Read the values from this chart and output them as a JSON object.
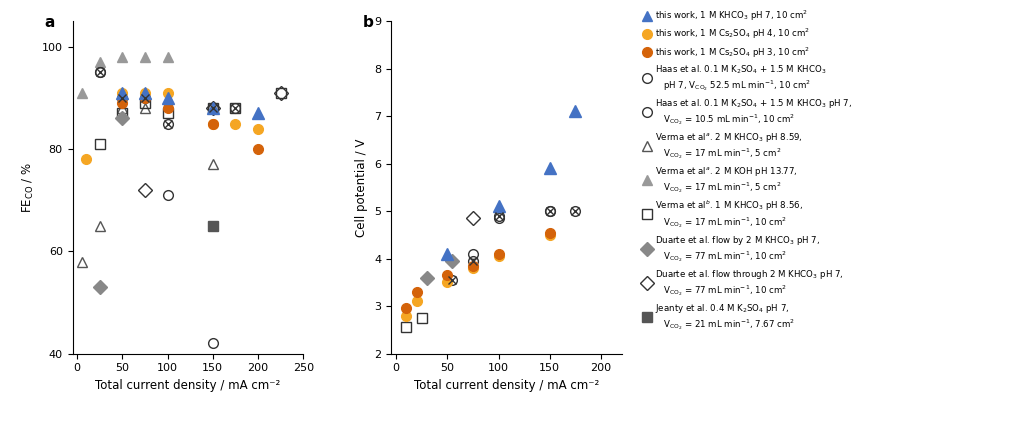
{
  "panel_a": {
    "title": "a",
    "xlabel": "Total current density / mA cm⁻²",
    "ylabel": "FE$_{CO}$ / %",
    "xlim": [
      -5,
      250
    ],
    "ylim": [
      40,
      105
    ],
    "yticks": [
      40,
      60,
      80,
      100
    ],
    "xticks": [
      0,
      50,
      100,
      150,
      200,
      250
    ],
    "series": {
      "verma_triangle_gray": {
        "x": [
          5,
          25,
          50,
          75,
          100
        ],
        "y": [
          91,
          97,
          98,
          98,
          98
        ],
        "color": "#999999",
        "marker": "^",
        "filled": true,
        "ms": 7,
        "zorder": 3
      },
      "verma_triangle_open": {
        "x": [
          5,
          25,
          50,
          75,
          150
        ],
        "y": [
          58,
          65,
          88,
          88,
          77
        ],
        "color": "#555555",
        "marker": "^",
        "filled": false,
        "ms": 7,
        "zorder": 3
      },
      "verma_square_open": {
        "x": [
          25,
          50,
          75,
          100,
          150,
          175,
          225
        ],
        "y": [
          81,
          87,
          89,
          87,
          88,
          88,
          91
        ],
        "color": "#333333",
        "marker": "s",
        "filled": false,
        "ms": 7,
        "zorder": 3
      },
      "duarte_diamond_gray": {
        "x": [
          25,
          50
        ],
        "y": [
          53,
          86
        ],
        "color": "#888888",
        "marker": "D",
        "filled": true,
        "ms": 7,
        "zorder": 3
      },
      "duarte_diamond_open": {
        "x": [
          75,
          150,
          225
        ],
        "y": [
          72,
          88,
          91
        ],
        "color": "#333333",
        "marker": "D",
        "filled": false,
        "ms": 7,
        "zorder": 3
      },
      "jeanty_square_dark": {
        "x": [
          150
        ],
        "y": [
          65
        ],
        "color": "#555555",
        "marker": "s",
        "filled": true,
        "ms": 7,
        "zorder": 3
      },
      "haas_circle": {
        "x": [
          25,
          100,
          150
        ],
        "y": [
          95,
          71,
          42
        ],
        "color": "#333333",
        "marker": "o",
        "filled": false,
        "ms": 7,
        "zorder": 4
      },
      "this_work_cs2so4_ph4": {
        "x": [
          10,
          50,
          75,
          100,
          150,
          175,
          200
        ],
        "y": [
          78,
          91,
          91,
          91,
          85,
          85,
          84
        ],
        "color": "#F5A623",
        "marker": "o",
        "filled": true,
        "ms": 7,
        "zorder": 5
      },
      "this_work_cs2so4_ph3": {
        "x": [
          50,
          75,
          100,
          150,
          200
        ],
        "y": [
          89,
          90,
          88,
          85,
          80
        ],
        "color": "#D4630A",
        "marker": "o",
        "filled": true,
        "ms": 7,
        "zorder": 5
      },
      "this_work_khco3": {
        "x": [
          50,
          75,
          100,
          150,
          200
        ],
        "y": [
          91,
          91,
          90,
          88,
          87
        ],
        "color": "#4472C4",
        "marker": "^",
        "filled": true,
        "ms": 8,
        "zorder": 5
      },
      "haas_cross_circle": {
        "x": [
          25,
          50,
          75,
          100,
          150,
          175
        ],
        "y": [
          95,
          90,
          90,
          85,
          88,
          88
        ],
        "color": "#333333",
        "marker": "cross_circle",
        "filled": false,
        "ms": 7,
        "zorder": 4
      }
    }
  },
  "panel_b": {
    "title": "b",
    "xlabel": "Total current density / mA cm⁻²",
    "ylabel": "Cell potential / V",
    "xlim": [
      -5,
      220
    ],
    "ylim": [
      2,
      9
    ],
    "yticks": [
      2,
      3,
      4,
      5,
      6,
      7,
      8,
      9
    ],
    "xticks": [
      0,
      50,
      100,
      150,
      200
    ],
    "series": {
      "verma_square_open": {
        "x": [
          10,
          25
        ],
        "y": [
          2.55,
          2.75
        ],
        "color": "#333333",
        "marker": "s",
        "filled": false,
        "ms": 7,
        "zorder": 3
      },
      "duarte_diamond_gray": {
        "x": [
          30,
          55
        ],
        "y": [
          3.6,
          3.95
        ],
        "color": "#888888",
        "marker": "D",
        "filled": true,
        "ms": 7,
        "zorder": 3
      },
      "duarte_diamond_open": {
        "x": [
          75
        ],
        "y": [
          4.85
        ],
        "color": "#333333",
        "marker": "D",
        "filled": false,
        "ms": 7,
        "zorder": 3
      },
      "haas_circle": {
        "x": [
          75,
          100,
          150
        ],
        "y": [
          4.1,
          4.85,
          5.0
        ],
        "color": "#333333",
        "marker": "o",
        "filled": false,
        "ms": 7,
        "zorder": 4
      },
      "this_work_cs2so4_ph4": {
        "x": [
          10,
          20,
          50,
          75,
          100,
          150
        ],
        "y": [
          2.8,
          3.1,
          3.5,
          3.8,
          4.05,
          4.5
        ],
        "color": "#F5A623",
        "marker": "o",
        "filled": true,
        "ms": 7,
        "zorder": 5
      },
      "this_work_cs2so4_ph3": {
        "x": [
          10,
          20,
          50,
          75,
          100,
          150
        ],
        "y": [
          2.95,
          3.3,
          3.65,
          3.85,
          4.1,
          4.55
        ],
        "color": "#D4630A",
        "marker": "o",
        "filled": true,
        "ms": 7,
        "zorder": 5
      },
      "this_work_khco3": {
        "x": [
          50,
          100,
          150,
          175
        ],
        "y": [
          4.1,
          5.1,
          5.9,
          7.1
        ],
        "color": "#4472C4",
        "marker": "^",
        "filled": true,
        "ms": 8,
        "zorder": 5
      },
      "haas_cross_circle": {
        "x": [
          55,
          75,
          100,
          150,
          175
        ],
        "y": [
          3.55,
          3.95,
          4.9,
          5.0,
          5.0
        ],
        "color": "#333333",
        "marker": "cross_circle",
        "filled": false,
        "ms": 7,
        "zorder": 4
      }
    }
  },
  "legend": {
    "entries": [
      {
        "label": "this work, 1 M KHCO$_3$ pH 7, 10 cm$^2$",
        "color": "#4472C4",
        "marker": "^",
        "filled": true,
        "ms": 7
      },
      {
        "label": "this work, 1 M Cs$_2$SO$_4$ pH 4, 10 cm$^2$",
        "color": "#F5A623",
        "marker": "o",
        "filled": true,
        "ms": 7
      },
      {
        "label": "this work, 1 M Cs$_2$SO$_4$ pH 3, 10 cm$^2$",
        "color": "#D4630A",
        "marker": "o",
        "filled": true,
        "ms": 7
      },
      {
        "label": "Haas et al. 0.1 M K$_2$SO$_4$ + 1.5 M KHCO$_3$\n   pH 7, V$_{\\rm CO_2}$ 52.5 mL min$^{-1}$, 10 cm$^2$",
        "color": "#333333",
        "marker": "cross_circle",
        "filled": false,
        "ms": 7
      },
      {
        "label": "Haas et al. 0.1 M K$_2$SO$_4$ + 1.5 M KHCO$_3$ pH 7,\n   V$_{\\rm CO_2}$ = 10.5 mL min$^{-1}$, 10 cm$^2$",
        "color": "#333333",
        "marker": "o",
        "filled": false,
        "ms": 7
      },
      {
        "label": "Verma et al$^a$. 2 M KHCO$_3$ pH 8.59,\n   V$_{\\rm CO_2}$ = 17 mL min$^{-1}$, 5 cm$^2$",
        "color": "#555555",
        "marker": "^",
        "filled": false,
        "ms": 7
      },
      {
        "label": "Verma et al$^a$. 2 M KOH pH 13.77,\n   V$_{\\rm CO_2}$ = 17 mL min$^{-1}$, 5 cm$^2$",
        "color": "#999999",
        "marker": "^",
        "filled": true,
        "ms": 7
      },
      {
        "label": "Verma et al$^b$. 1 M KHCO$_3$ pH 8.56,\n   V$_{\\rm CO_2}$ = 17 mL min$^{-1}$, 10 cm$^2$",
        "color": "#333333",
        "marker": "s",
        "filled": false,
        "ms": 7
      },
      {
        "label": "Duarte et al. flow by 2 M KHCO$_3$ pH 7,\n   V$_{\\rm CO_2}$ = 77 mL min$^{-1}$, 10 cm$^2$",
        "color": "#888888",
        "marker": "D",
        "filled": true,
        "ms": 7
      },
      {
        "label": "Duarte et al. flow through 2 M KHCO$_3$ pH 7,\n   V$_{\\rm CO_2}$ = 77 mL min$^{-1}$, 10 cm$^2$",
        "color": "#333333",
        "marker": "D",
        "filled": false,
        "ms": 7
      },
      {
        "label": "Jeanty et al. 0.4 M K$_2$SO$_4$ pH 7,\n   V$_{\\rm CO_2}$ = 21 mL min$^{-1}$, 7.67 cm$^2$",
        "color": "#555555",
        "marker": "s",
        "filled": true,
        "ms": 7
      }
    ]
  },
  "figsize": [
    10.36,
    4.26
  ],
  "dpi": 100
}
